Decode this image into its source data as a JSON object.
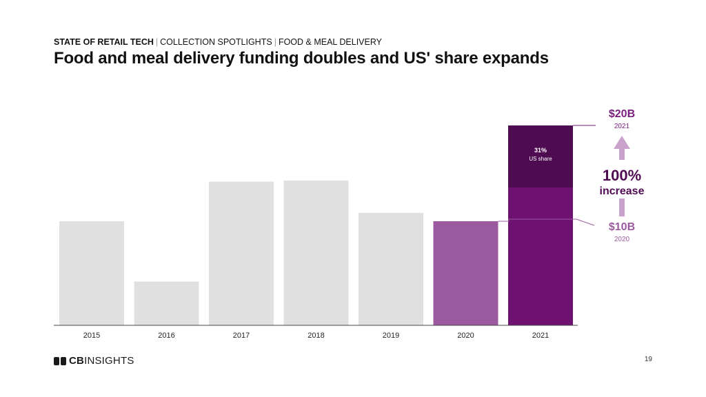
{
  "header": {
    "breadcrumb": [
      "STATE OF RETAIL TECH",
      "COLLECTION SPOTLIGHTS",
      "FOOD & MEAL DELIVERY"
    ],
    "title": "Food and meal delivery funding doubles and US' share expands"
  },
  "footer": {
    "logo_bold": "CB",
    "logo_rest": "INSIGHTS",
    "page_number": "19"
  },
  "colors": {
    "gray": "#e0e0e0",
    "light_purple": "#9b59a0",
    "purple": "#6e1170",
    "dark_purple": "#4f0b52",
    "arrow_purple": "#c8a2cb",
    "annotation_purple": "#7a1d7e",
    "axis": "#444444"
  },
  "chart_data": {
    "type": "bar",
    "categories": [
      "2015",
      "2016",
      "2017",
      "2018",
      "2019",
      "2020",
      "2021"
    ],
    "values": [
      10,
      4.2,
      13.8,
      13.9,
      10.8,
      10,
      19.2
    ],
    "ylim": [
      0,
      19.2
    ],
    "highlight": {
      "2020": "light_purple",
      "2021": "purple"
    },
    "us_share": {
      "category": "2021",
      "percent": 31,
      "value_label": "31%",
      "label": "US share"
    },
    "annotations": {
      "top_value": "$20B",
      "top_year": "2021",
      "bottom_value": "$10B",
      "bottom_year": "2020",
      "increase_pct": "100%",
      "increase_word": "increase"
    }
  }
}
